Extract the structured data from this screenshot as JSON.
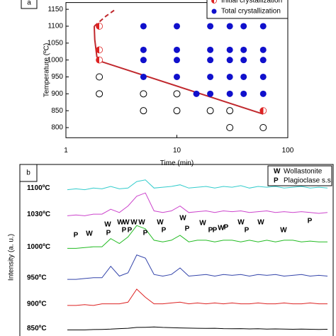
{
  "chart_data": [
    {
      "type": "scatter",
      "panel_label": "a",
      "xlabel": "Time (min)",
      "ylabel": "Temperature (ºC)",
      "xscale": "log",
      "xlim": [
        1,
        100
      ],
      "xticks": [
        1,
        10,
        100
      ],
      "ylim": [
        770,
        1170
      ],
      "yticks": [
        800,
        850,
        900,
        950,
        1000,
        1050,
        1100,
        1150
      ],
      "legend": "top-right",
      "series": [
        {
          "name": "Initial crystallization",
          "color": "#dd2222",
          "marker": "half",
          "x": [
            2,
            2,
            2,
            60
          ],
          "y": [
            1100,
            1030,
            1000,
            850
          ]
        },
        {
          "name": "Total crystallization",
          "color": "#1010cc",
          "marker": "filled",
          "x": [
            5,
            5,
            5,
            5,
            10,
            10,
            10,
            10,
            15,
            20,
            20,
            20,
            20,
            20,
            30,
            30,
            30,
            30,
            30,
            40,
            40,
            40,
            40,
            40,
            60,
            60,
            60,
            60,
            60
          ],
          "y": [
            1100,
            1030,
            1000,
            950,
            1100,
            1030,
            1000,
            950,
            900,
            1100,
            1030,
            1000,
            950,
            900,
            1100,
            1030,
            1000,
            950,
            900,
            1100,
            1030,
            1000,
            950,
            900,
            1100,
            1030,
            1000,
            950,
            900
          ]
        },
        {
          "color": "#000000",
          "marker": "open",
          "x": [
            2,
            2,
            5,
            5,
            10,
            10,
            20,
            30,
            30,
            60
          ],
          "y": [
            950,
            900,
            900,
            850,
            900,
            850,
            850,
            850,
            800,
            800
          ]
        }
      ],
      "curve": {
        "color": "#c0282d",
        "x": [
          1.8,
          1.82,
          1.9,
          2.1,
          60
        ],
        "y": [
          1100,
          1060,
          1010,
          995,
          840
        ]
      },
      "curve_dashed": {
        "color": "#c0282d",
        "x": [
          1.8,
          2.3,
          2.8
        ],
        "y": [
          1100,
          1130,
          1150
        ]
      }
    },
    {
      "type": "line",
      "panel_label": "b",
      "ylabel": "Intensity (a. u.)",
      "ylim": [
        0,
        100
      ],
      "xlim": [
        0,
        30
      ],
      "x": [
        0,
        1,
        2,
        3,
        4,
        5,
        6,
        7,
        8,
        9,
        10,
        11,
        12,
        13,
        14,
        15,
        16,
        17,
        18,
        19,
        20,
        21,
        22,
        23,
        24,
        25,
        26,
        27,
        28,
        29,
        30
      ],
      "legend_items": [
        {
          "symbol": "W",
          "name": "Wollastonite"
        },
        {
          "symbol": "P",
          "name": "Plagioclase s.s."
        }
      ],
      "peak_labels": [
        "P",
        "W",
        "W",
        "P",
        "W",
        "W",
        "P",
        "P",
        "W",
        "W",
        "P",
        "W",
        "P",
        "W",
        "P",
        "W",
        "P",
        "P",
        "W",
        "P",
        "W",
        "P",
        "W",
        "W",
        "P"
      ],
      "series": [
        {
          "name": "1100ºC",
          "color": "#33cccc",
          "values": [
            88,
            88.5,
            88,
            89,
            88.5,
            90,
            88.5,
            89,
            93,
            94,
            89,
            89.5,
            90,
            91,
            89,
            89.5,
            90,
            89,
            90,
            89.5,
            90.5,
            89,
            90,
            89.5,
            90,
            89,
            89.5,
            90,
            89,
            89.5,
            89
          ]
        },
        {
          "name": "1030ºC",
          "color": "#cc44cc",
          "values": [
            72,
            72.5,
            72,
            73,
            73,
            76,
            74,
            78,
            84,
            86,
            75,
            74,
            75,
            78,
            74,
            74.5,
            75,
            74,
            75,
            74.5,
            75,
            74,
            74.5,
            75,
            74,
            74.5,
            74,
            74.5,
            74,
            73.5,
            74
          ]
        },
        {
          "name": "1000ºC",
          "color": "#22bb22",
          "values": [
            52,
            52,
            52.5,
            53,
            53,
            58,
            55,
            59,
            66,
            64,
            57,
            56,
            57,
            60,
            56,
            57,
            57,
            56,
            57,
            57,
            56,
            57,
            56,
            57,
            56,
            57,
            57,
            56,
            56.5,
            56,
            56
          ]
        },
        {
          "name": "950ºC",
          "color": "#3344aa",
          "values": [
            33,
            33,
            33.5,
            34,
            34,
            41,
            35,
            37,
            48,
            46,
            36,
            35,
            36,
            40,
            35,
            35.5,
            36,
            35,
            36,
            35.5,
            36,
            35,
            36,
            35.5,
            36,
            35,
            35.5,
            36,
            35,
            35.5,
            35
          ]
        },
        {
          "name": "900ºC",
          "color": "#dd2222",
          "values": [
            17,
            17,
            17.5,
            17,
            18,
            18,
            18,
            19,
            27,
            22,
            18,
            18,
            18.5,
            19,
            18,
            18.5,
            18,
            18.5,
            18,
            18.5,
            18,
            18,
            18.5,
            18,
            18,
            18.5,
            18,
            18,
            18.5,
            18,
            18
          ]
        },
        {
          "name": "850ºC",
          "color": "#000000",
          "values": [
            2,
            2,
            2,
            2.2,
            2.3,
            2.5,
            2.8,
            3,
            3.5,
            3.6,
            3.8,
            3.5,
            3.4,
            3.2,
            3.1,
            3,
            2.9,
            3,
            2.8,
            2.7,
            2.8,
            2.6,
            2.7,
            2.5,
            2.6,
            2.5,
            2.4,
            2.5,
            2.4,
            2.3,
            2.4
          ]
        }
      ]
    }
  ]
}
